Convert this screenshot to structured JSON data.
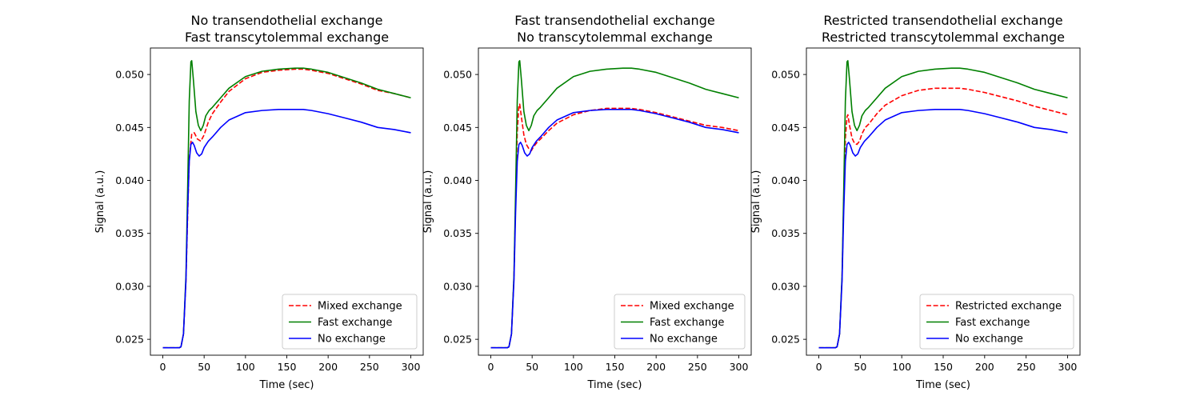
{
  "chart_data": [
    {
      "type": "line",
      "title": "No transendothelial exchange\nFast transcytolemmal exchange",
      "xlabel": "Time (sec)",
      "ylabel": "Signal (a.u.)",
      "xlim": [
        -15,
        315
      ],
      "ylim": [
        0.0235,
        0.0525
      ],
      "xticks": [
        0,
        50,
        100,
        150,
        200,
        250,
        300
      ],
      "xtick_labels": [
        "0",
        "50",
        "100",
        "150",
        "200",
        "250",
        "300"
      ],
      "yticks": [
        0.025,
        0.03,
        0.035,
        0.04,
        0.045,
        0.05
      ],
      "ytick_labels": [
        "0.025",
        "0.030",
        "0.035",
        "0.040",
        "0.045",
        "0.050"
      ],
      "grid": false,
      "legend_position": "lower right",
      "series": [
        {
          "name": "Mixed exchange",
          "color": "#ff0000",
          "dash": "dashed",
          "x": [
            0,
            20,
            22,
            25,
            28,
            30,
            32,
            35,
            38,
            42,
            46,
            50,
            55,
            60,
            70,
            80,
            100,
            120,
            140,
            160,
            170,
            180,
            200,
            220,
            240,
            260,
            280,
            300
          ],
          "y": [
            0.0242,
            0.0242,
            0.0243,
            0.0255,
            0.0305,
            0.0365,
            0.042,
            0.0444,
            0.0445,
            0.0439,
            0.0437,
            0.0443,
            0.0455,
            0.0463,
            0.0474,
            0.0484,
            0.0496,
            0.0502,
            0.0504,
            0.0505,
            0.0505,
            0.0504,
            0.0501,
            0.0496,
            0.0491,
            0.0485,
            0.0482,
            0.0478
          ]
        },
        {
          "name": "Fast exchange",
          "color": "#008000",
          "dash": "solid",
          "x": [
            0,
            20,
            22,
            25,
            28,
            30,
            32,
            34,
            35,
            37,
            40,
            43,
            46,
            49,
            52,
            56,
            60,
            70,
            80,
            100,
            120,
            140,
            160,
            170,
            180,
            200,
            220,
            240,
            260,
            280,
            300
          ],
          "y": [
            0.0242,
            0.0242,
            0.0243,
            0.0255,
            0.031,
            0.039,
            0.0475,
            0.0512,
            0.0513,
            0.0495,
            0.0465,
            0.0452,
            0.0447,
            0.0452,
            0.0461,
            0.0466,
            0.0469,
            0.0478,
            0.0487,
            0.0498,
            0.0503,
            0.0505,
            0.0506,
            0.0506,
            0.0505,
            0.0502,
            0.0497,
            0.0492,
            0.0486,
            0.0482,
            0.0478
          ]
        },
        {
          "name": "No exchange",
          "color": "#0000ff",
          "dash": "solid",
          "x": [
            0,
            20,
            22,
            25,
            28,
            30,
            32,
            34,
            36,
            38,
            41,
            44,
            47,
            50,
            55,
            60,
            70,
            80,
            100,
            120,
            140,
            160,
            170,
            180,
            200,
            220,
            240,
            260,
            280,
            300
          ],
          "y": [
            0.0242,
            0.0242,
            0.0243,
            0.0255,
            0.0305,
            0.037,
            0.0418,
            0.0434,
            0.0436,
            0.0433,
            0.0426,
            0.0423,
            0.0425,
            0.0431,
            0.0437,
            0.0441,
            0.045,
            0.0457,
            0.0464,
            0.0466,
            0.0467,
            0.0467,
            0.0467,
            0.0466,
            0.0463,
            0.0459,
            0.0455,
            0.045,
            0.0448,
            0.0445
          ]
        }
      ]
    },
    {
      "type": "line",
      "title": "Fast transendothelial exchange\nNo transcytolemmal exchange",
      "xlabel": "Time (sec)",
      "ylabel": "Signal (a.u.)",
      "xlim": [
        -15,
        315
      ],
      "ylim": [
        0.0235,
        0.0525
      ],
      "xticks": [
        0,
        50,
        100,
        150,
        200,
        250,
        300
      ],
      "xtick_labels": [
        "0",
        "50",
        "100",
        "150",
        "200",
        "250",
        "300"
      ],
      "yticks": [
        0.025,
        0.03,
        0.035,
        0.04,
        0.045,
        0.05
      ],
      "ytick_labels": [
        "0.025",
        "0.030",
        "0.035",
        "0.040",
        "0.045",
        "0.050"
      ],
      "grid": false,
      "legend_position": "lower right",
      "series": [
        {
          "name": "Mixed exchange",
          "color": "#ff0000",
          "dash": "dashed",
          "x": [
            0,
            20,
            22,
            25,
            28,
            30,
            32,
            34,
            35,
            37,
            40,
            43,
            46,
            49,
            52,
            56,
            60,
            70,
            80,
            100,
            120,
            140,
            160,
            170,
            180,
            200,
            220,
            240,
            260,
            280,
            300
          ],
          "y": [
            0.0242,
            0.0242,
            0.0243,
            0.0255,
            0.0308,
            0.038,
            0.0446,
            0.0471,
            0.0472,
            0.046,
            0.0443,
            0.0434,
            0.043,
            0.0428,
            0.0432,
            0.0436,
            0.0439,
            0.0447,
            0.0454,
            0.0462,
            0.0466,
            0.0468,
            0.0468,
            0.0468,
            0.0467,
            0.0464,
            0.046,
            0.0456,
            0.0452,
            0.045,
            0.0447
          ]
        },
        {
          "name": "Fast exchange",
          "color": "#008000",
          "dash": "solid",
          "x": [
            0,
            20,
            22,
            25,
            28,
            30,
            32,
            34,
            35,
            37,
            40,
            43,
            46,
            49,
            52,
            56,
            60,
            70,
            80,
            100,
            120,
            140,
            160,
            170,
            180,
            200,
            220,
            240,
            260,
            280,
            300
          ],
          "y": [
            0.0242,
            0.0242,
            0.0243,
            0.0255,
            0.031,
            0.039,
            0.0475,
            0.0512,
            0.0513,
            0.0495,
            0.0465,
            0.0452,
            0.0447,
            0.0452,
            0.0461,
            0.0466,
            0.0469,
            0.0478,
            0.0487,
            0.0498,
            0.0503,
            0.0505,
            0.0506,
            0.0506,
            0.0505,
            0.0502,
            0.0497,
            0.0492,
            0.0486,
            0.0482,
            0.0478
          ]
        },
        {
          "name": "No exchange",
          "color": "#0000ff",
          "dash": "solid",
          "x": [
            0,
            20,
            22,
            25,
            28,
            30,
            32,
            34,
            36,
            38,
            41,
            44,
            47,
            50,
            55,
            60,
            70,
            80,
            100,
            120,
            140,
            160,
            170,
            180,
            200,
            220,
            240,
            260,
            280,
            300
          ],
          "y": [
            0.0242,
            0.0242,
            0.0243,
            0.0255,
            0.0305,
            0.037,
            0.0418,
            0.0434,
            0.0436,
            0.0433,
            0.0426,
            0.0423,
            0.0425,
            0.0431,
            0.0437,
            0.0441,
            0.045,
            0.0457,
            0.0464,
            0.0466,
            0.0467,
            0.0467,
            0.0467,
            0.0466,
            0.0463,
            0.0459,
            0.0455,
            0.045,
            0.0448,
            0.0445
          ]
        }
      ]
    },
    {
      "type": "line",
      "title": "Restricted transendothelial exchange\nRestricted transcytolemmal exchange",
      "xlabel": "Time (sec)",
      "ylabel": "Signal (a.u.)",
      "xlim": [
        -15,
        315
      ],
      "ylim": [
        0.0235,
        0.0525
      ],
      "xticks": [
        0,
        50,
        100,
        150,
        200,
        250,
        300
      ],
      "xtick_labels": [
        "0",
        "50",
        "100",
        "150",
        "200",
        "250",
        "300"
      ],
      "yticks": [
        0.025,
        0.03,
        0.035,
        0.04,
        0.045,
        0.05
      ],
      "ytick_labels": [
        "0.025",
        "0.030",
        "0.035",
        "0.040",
        "0.045",
        "0.050"
      ],
      "grid": false,
      "legend_position": "lower right",
      "series": [
        {
          "name": "Restricted exchange",
          "color": "#ff0000",
          "dash": "dashed",
          "x": [
            0,
            20,
            22,
            25,
            28,
            30,
            32,
            34,
            35,
            37,
            40,
            43,
            46,
            49,
            52,
            56,
            60,
            70,
            80,
            100,
            120,
            140,
            160,
            170,
            180,
            200,
            220,
            240,
            260,
            280,
            300
          ],
          "y": [
            0.0242,
            0.0242,
            0.0243,
            0.0255,
            0.0308,
            0.038,
            0.044,
            0.046,
            0.0462,
            0.0452,
            0.044,
            0.0435,
            0.0434,
            0.0437,
            0.0444,
            0.045,
            0.0453,
            0.0463,
            0.0471,
            0.048,
            0.0485,
            0.0487,
            0.0487,
            0.0487,
            0.0486,
            0.0483,
            0.0479,
            0.0475,
            0.047,
            0.0466,
            0.0462
          ]
        },
        {
          "name": "Fast exchange",
          "color": "#008000",
          "dash": "solid",
          "x": [
            0,
            20,
            22,
            25,
            28,
            30,
            32,
            34,
            35,
            37,
            40,
            43,
            46,
            49,
            52,
            56,
            60,
            70,
            80,
            100,
            120,
            140,
            160,
            170,
            180,
            200,
            220,
            240,
            260,
            280,
            300
          ],
          "y": [
            0.0242,
            0.0242,
            0.0243,
            0.0255,
            0.031,
            0.039,
            0.0475,
            0.0512,
            0.0513,
            0.0495,
            0.0465,
            0.0452,
            0.0447,
            0.0452,
            0.0461,
            0.0466,
            0.0469,
            0.0478,
            0.0487,
            0.0498,
            0.0503,
            0.0505,
            0.0506,
            0.0506,
            0.0505,
            0.0502,
            0.0497,
            0.0492,
            0.0486,
            0.0482,
            0.0478
          ]
        },
        {
          "name": "No exchange",
          "color": "#0000ff",
          "dash": "solid",
          "x": [
            0,
            20,
            22,
            25,
            28,
            30,
            32,
            34,
            36,
            38,
            41,
            44,
            47,
            50,
            55,
            60,
            70,
            80,
            100,
            120,
            140,
            160,
            170,
            180,
            200,
            220,
            240,
            260,
            280,
            300
          ],
          "y": [
            0.0242,
            0.0242,
            0.0243,
            0.0255,
            0.0305,
            0.037,
            0.0418,
            0.0434,
            0.0436,
            0.0433,
            0.0426,
            0.0423,
            0.0425,
            0.0431,
            0.0437,
            0.0441,
            0.045,
            0.0457,
            0.0464,
            0.0466,
            0.0467,
            0.0467,
            0.0467,
            0.0466,
            0.0463,
            0.0459,
            0.0455,
            0.045,
            0.0448,
            0.0445
          ]
        }
      ]
    }
  ]
}
